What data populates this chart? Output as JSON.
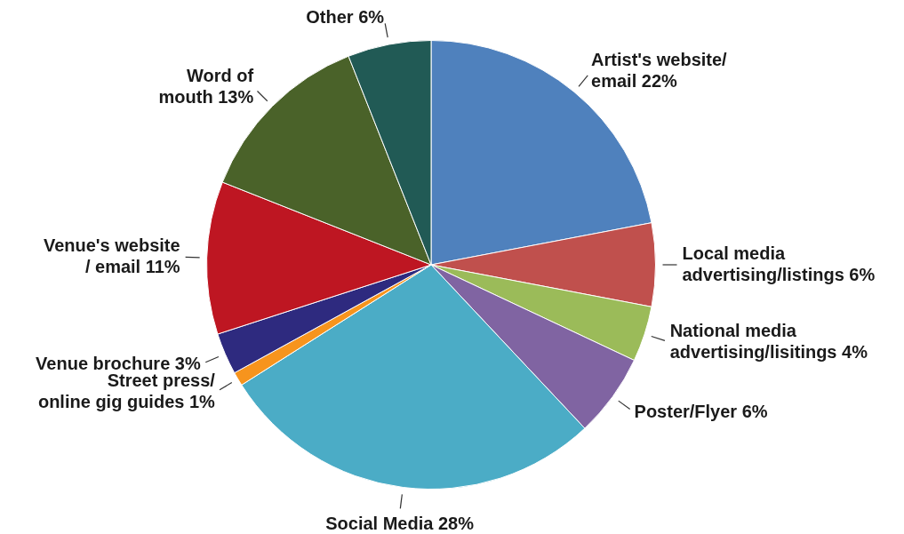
{
  "chart_data": {
    "type": "pie",
    "categories": [
      "Artist's website/\nemail",
      "Local media\nadvertising/listings",
      "National media\nadvertising/lisitings",
      "Poster/Flyer",
      "Social Media",
      "Street press/\nonline gig guides",
      "Venue brochure",
      "Venue's website\n/ email",
      "Word of\nmouth",
      "Other"
    ],
    "values": [
      22,
      6,
      4,
      6,
      28,
      1,
      3,
      11,
      13,
      6
    ],
    "value_labels": [
      "22%",
      "6%",
      "4%",
      "6%",
      "28%",
      "1%",
      "3%",
      "11%",
      "13%",
      "6%"
    ],
    "colors": [
      "#4f81bd",
      "#c0504d",
      "#9bbb59",
      "#8064a2",
      "#4bacc6",
      "#f7941d",
      "#2e2a7f",
      "#be1622",
      "#4a6229",
      "#215a55"
    ],
    "legend": false
  }
}
